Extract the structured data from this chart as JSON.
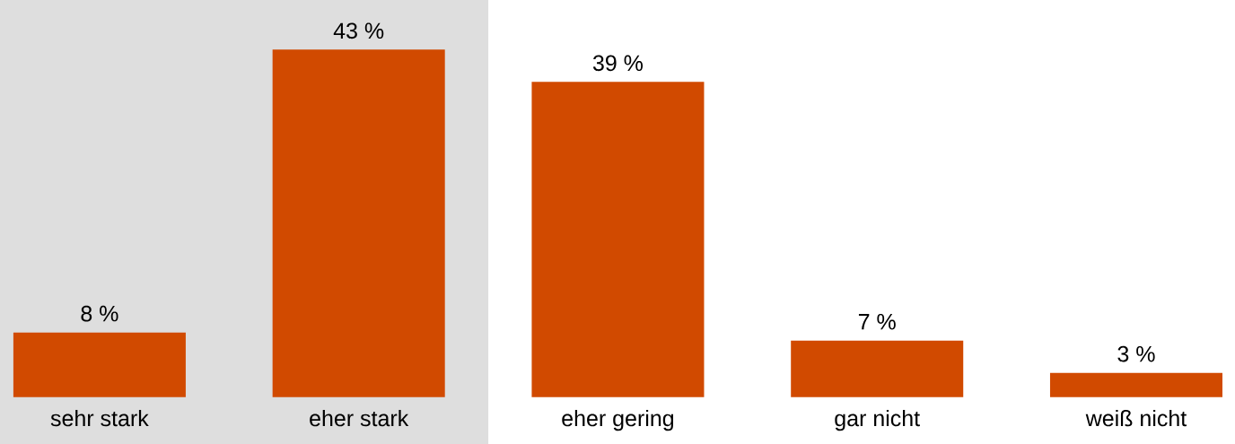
{
  "chart_data": {
    "type": "bar",
    "categories": [
      "sehr stark",
      "eher stark",
      "eher gering",
      "gar nicht",
      "weiß nicht"
    ],
    "values": [
      8,
      43,
      39,
      7,
      3
    ],
    "value_labels": [
      "8 %",
      "43 %",
      "39 %",
      "7 %",
      "3 %"
    ],
    "color": "#d14a00",
    "bands": [
      {
        "axis": "x",
        "from": "sehr stark",
        "to": "eher stark",
        "color": "#dedede"
      }
    ]
  }
}
